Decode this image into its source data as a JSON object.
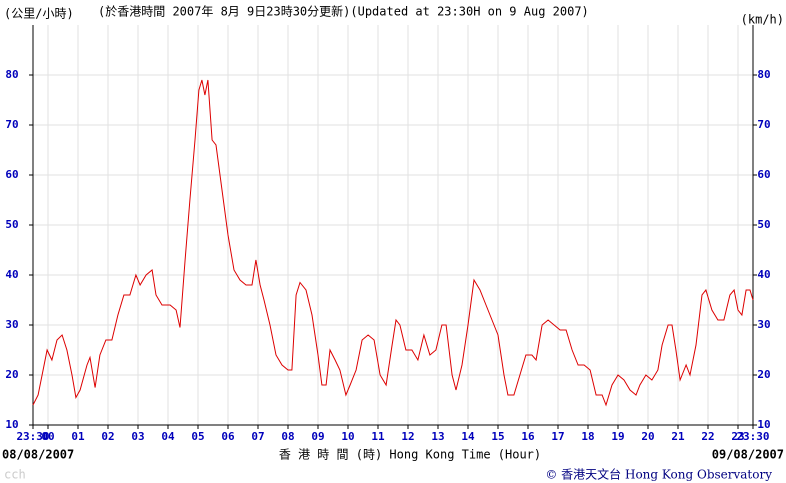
{
  "chart_data": {
    "type": "line",
    "title": "(於香港時間 2007年 8月 9日23時30分更新)(Updated at 23:30H on 9 Aug 2007)",
    "y_label": "(公里/小時)",
    "y2_label": "(km/h)",
    "x_label": "香 港 時 間 (時) Hong Kong Time (Hour)",
    "start_date": "08/08/2007",
    "end_date": "09/08/2007",
    "credit": "© 香港天文台 Hong Kong Observatory",
    "watermark": "cch",
    "color": "#dd0000",
    "grid": true,
    "xlim": [
      0,
      24
    ],
    "xticks": [
      {
        "value": 0,
        "label": "23:30"
      },
      {
        "value": 0.5,
        "label": "00"
      },
      {
        "value": 1.5,
        "label": "01"
      },
      {
        "value": 2.5,
        "label": "02"
      },
      {
        "value": 3.5,
        "label": "03"
      },
      {
        "value": 4.5,
        "label": "04"
      },
      {
        "value": 5.5,
        "label": "05"
      },
      {
        "value": 6.5,
        "label": "06"
      },
      {
        "value": 7.5,
        "label": "07"
      },
      {
        "value": 8.5,
        "label": "08"
      },
      {
        "value": 9.5,
        "label": "09"
      },
      {
        "value": 10.5,
        "label": "10"
      },
      {
        "value": 11.5,
        "label": "11"
      },
      {
        "value": 12.5,
        "label": "12"
      },
      {
        "value": 13.5,
        "label": "13"
      },
      {
        "value": 14.5,
        "label": "14"
      },
      {
        "value": 15.5,
        "label": "15"
      },
      {
        "value": 16.5,
        "label": "16"
      },
      {
        "value": 17.5,
        "label": "17"
      },
      {
        "value": 18.5,
        "label": "18"
      },
      {
        "value": 19.5,
        "label": "19"
      },
      {
        "value": 20.5,
        "label": "20"
      },
      {
        "value": 21.5,
        "label": "21"
      },
      {
        "value": 22.5,
        "label": "22"
      },
      {
        "value": 23.5,
        "label": "23"
      },
      {
        "value": 24,
        "label": "23:30"
      }
    ],
    "ylim": [
      10,
      90
    ],
    "yticks": [
      10,
      20,
      30,
      40,
      50,
      60,
      70,
      80
    ],
    "y2lim": [
      10,
      90
    ],
    "y2ticks": [
      10,
      20,
      30,
      40,
      50,
      60,
      70,
      80
    ],
    "x": [
      0,
      0.17,
      0.37,
      0.47,
      0.63,
      0.8,
      0.97,
      1.13,
      1.3,
      1.43,
      1.57,
      1.8,
      1.9,
      2.07,
      2.23,
      2.43,
      2.63,
      2.83,
      3.03,
      3.23,
      3.43,
      3.57,
      3.77,
      3.97,
      4.1,
      4.3,
      4.57,
      4.77,
      4.9,
      5.07,
      5.23,
      5.4,
      5.53,
      5.63,
      5.73,
      5.83,
      5.97,
      6.1,
      6.3,
      6.5,
      6.7,
      6.9,
      7.1,
      7.3,
      7.43,
      7.57,
      7.7,
      7.9,
      8.1,
      8.3,
      8.5,
      8.63,
      8.77,
      8.9,
      9.1,
      9.3,
      9.5,
      9.63,
      9.77,
      9.9,
      10.07,
      10.23,
      10.43,
      10.57,
      10.77,
      10.97,
      11.17,
      11.37,
      11.57,
      11.77,
      11.97,
      12.1,
      12.23,
      12.43,
      12.63,
      12.83,
      13.03,
      13.23,
      13.43,
      13.63,
      13.77,
      13.97,
      14.1,
      14.3,
      14.5,
      14.7,
      14.9,
      15.1,
      15.3,
      15.5,
      15.7,
      15.83,
      16.03,
      16.23,
      16.43,
      16.63,
      16.77,
      16.97,
      17.17,
      17.37,
      17.57,
      17.77,
      17.97,
      18.17,
      18.37,
      18.57,
      18.77,
      18.97,
      19.1,
      19.3,
      19.5,
      19.7,
      19.9,
      20.1,
      20.23,
      20.43,
      20.63,
      20.83,
      20.97,
      21.17,
      21.3,
      21.43,
      21.57,
      21.77,
      21.9,
      22.1,
      22.3,
      22.43,
      22.63,
      22.83,
      23.03,
      23.23,
      23.37,
      23.5,
      23.63,
      23.77,
      23.9,
      24
    ],
    "values": [
      14,
      16,
      22,
      25,
      23,
      27,
      28,
      25,
      20,
      15.5,
      17,
      22,
      23.5,
      17.5,
      24,
      27,
      27,
      32,
      36,
      36,
      40,
      38,
      40,
      41,
      36,
      34,
      34,
      33,
      29.5,
      43,
      55,
      67,
      77,
      79,
      76,
      79,
      67,
      66,
      57,
      48,
      41,
      39,
      38,
      38,
      43,
      38,
      35,
      30,
      24,
      22,
      21,
      21,
      36,
      38.5,
      37,
      32,
      24,
      18,
      18,
      25,
      23,
      21,
      16,
      18,
      21,
      27,
      28,
      27,
      20,
      18,
      26,
      31,
      30,
      25,
      25,
      23,
      28,
      24,
      25,
      30,
      30,
      20,
      17,
      22,
      30,
      39,
      37,
      34,
      31,
      28,
      20,
      16,
      16,
      20,
      24,
      24,
      23,
      30,
      31,
      30,
      29,
      29,
      25,
      22,
      22,
      21,
      16,
      16,
      14,
      18,
      20,
      19,
      17,
      16,
      18,
      20,
      19,
      21,
      26,
      30,
      30,
      25,
      19,
      22,
      20,
      26,
      36,
      37,
      33,
      31,
      31,
      36,
      37,
      33,
      32,
      37,
      37,
      35
    ]
  }
}
